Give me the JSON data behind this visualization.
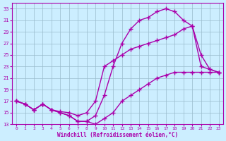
{
  "title": "",
  "xlabel": "Windchill (Refroidissement éolien,°C)",
  "ylabel": "",
  "bg_color": "#cceeff",
  "line_color": "#aa00aa",
  "marker": "+",
  "markersize": 4,
  "linewidth": 1.0,
  "xlim": [
    -0.5,
    23.5
  ],
  "ylim": [
    13,
    34
  ],
  "xticks": [
    0,
    1,
    2,
    3,
    4,
    5,
    6,
    7,
    8,
    9,
    10,
    11,
    12,
    13,
    14,
    15,
    16,
    17,
    18,
    19,
    20,
    21,
    22,
    23
  ],
  "yticks": [
    13,
    15,
    17,
    19,
    21,
    23,
    25,
    27,
    29,
    31,
    33
  ],
  "grid_color": "#99bbcc",
  "series": [
    {
      "x": [
        0,
        1,
        2,
        3,
        4,
        5,
        6,
        7,
        8,
        9,
        10,
        11,
        12,
        13,
        14,
        15,
        16,
        17,
        18,
        19,
        20,
        21,
        22,
        23
      ],
      "y": [
        17,
        16.5,
        15.5,
        16.5,
        15.5,
        15,
        14.5,
        13.5,
        13.5,
        14.5,
        18,
        23,
        27,
        29.5,
        31,
        31.5,
        32.5,
        33,
        32.5,
        31,
        30,
        23,
        22.5,
        22
      ]
    },
    {
      "x": [
        0,
        1,
        2,
        3,
        4,
        5,
        6,
        7,
        8,
        9,
        10,
        11,
        12,
        13,
        14,
        15,
        16,
        17,
        18,
        19,
        20,
        21,
        22,
        23
      ],
      "y": [
        17,
        16.5,
        15.5,
        16.5,
        15.5,
        15.2,
        15,
        14.5,
        15,
        17,
        23,
        24,
        25,
        26,
        26.5,
        27,
        27.5,
        28,
        28.5,
        29.5,
        30,
        25,
        22.5,
        22
      ]
    },
    {
      "x": [
        0,
        1,
        2,
        3,
        4,
        5,
        6,
        7,
        8,
        9,
        10,
        11,
        12,
        13,
        14,
        15,
        16,
        17,
        18,
        19,
        20,
        21,
        22,
        23
      ],
      "y": [
        17,
        16.5,
        15.5,
        16.5,
        15.5,
        15,
        14.5,
        13.5,
        13.5,
        13,
        14,
        15,
        17,
        18,
        19,
        20,
        21,
        21.5,
        22,
        22,
        22,
        22,
        22,
        22
      ]
    }
  ]
}
